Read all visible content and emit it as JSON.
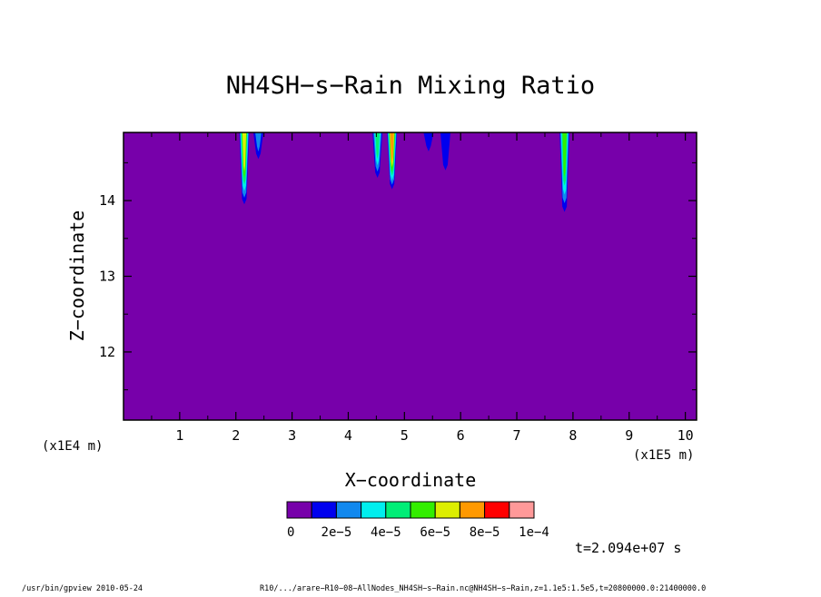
{
  "chart_data": {
    "type": "heatmap",
    "title": "NH4SH−s−Rain Mixing Ratio",
    "xlabel": "X−coordinate",
    "ylabel": "Z−coordinate",
    "x_unit_left": "(x1E4 m)",
    "x_unit_right": "(x1E5 m)",
    "xlim": [
      0,
      10.2
    ],
    "ylim": [
      11.1,
      14.9
    ],
    "x_ticks": [
      "1",
      "2",
      "3",
      "4",
      "5",
      "6",
      "7",
      "8",
      "9",
      "10"
    ],
    "y_ticks": [
      "12",
      "13",
      "14"
    ],
    "background_value": 0,
    "plumes": [
      {
        "x_center": 2.15,
        "depth_to": 13.95,
        "peak": 6e-05
      },
      {
        "x_center": 2.4,
        "depth_to": 14.55,
        "peak": 2e-05
      },
      {
        "x_center": 4.52,
        "depth_to": 14.3,
        "peak": 4e-05
      },
      {
        "x_center": 4.78,
        "depth_to": 14.15,
        "peak": 7e-05
      },
      {
        "x_center": 5.43,
        "depth_to": 14.65,
        "peak": 1e-05
      },
      {
        "x_center": 5.73,
        "depth_to": 14.4,
        "peak": 1e-05
      },
      {
        "x_center": 7.85,
        "depth_to": 13.85,
        "peak": 5e-05
      }
    ],
    "colorbar": {
      "colors": [
        "#7700aa",
        "#0000ee",
        "#1188ee",
        "#00eeee",
        "#00ee77",
        "#33ee00",
        "#ddee00",
        "#ff9900",
        "#ff0000",
        "#ff9999"
      ],
      "labels": [
        "0",
        "2e−5",
        "4e−5",
        "6e−5",
        "8e−5",
        "1e−4"
      ]
    },
    "time_label": "t=2.094e+07 s"
  },
  "footer": {
    "left": "/usr/bin/gpview  2010-05-24",
    "right": "R10/.../arare−R10−08−AllNodes_NH4SH−s−Rain.nc@NH4SH−s−Rain,z=1.1e5:1.5e5,t=20800000.0:21400000.0"
  }
}
